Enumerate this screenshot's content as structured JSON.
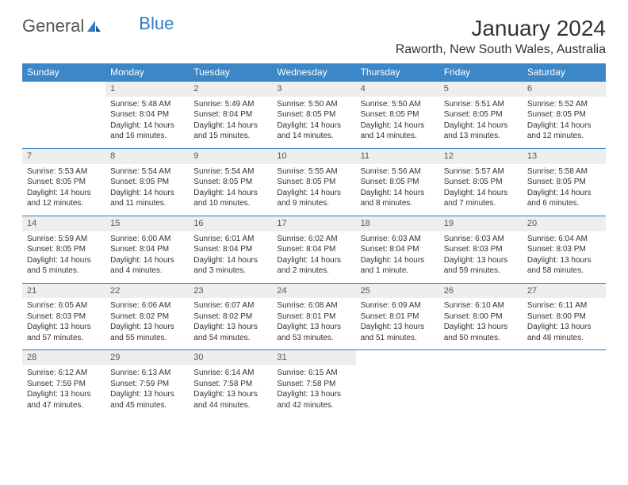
{
  "logo": {
    "part1": "General",
    "part2": "Blue"
  },
  "title": "January 2024",
  "location": "Raworth, New South Wales, Australia",
  "colors": {
    "header_bg": "#3b87c8",
    "header_text": "#ffffff",
    "rule": "#2f7cc4",
    "daynum_bg": "#eeeeee",
    "logo_blue": "#2f7cc4",
    "body_text": "#333333"
  },
  "dow": [
    "Sunday",
    "Monday",
    "Tuesday",
    "Wednesday",
    "Thursday",
    "Friday",
    "Saturday"
  ],
  "weeks": [
    [
      {
        "n": "",
        "sr": "",
        "ss": "",
        "dl": ""
      },
      {
        "n": "1",
        "sr": "Sunrise: 5:48 AM",
        "ss": "Sunset: 8:04 PM",
        "dl": "Daylight: 14 hours and 16 minutes."
      },
      {
        "n": "2",
        "sr": "Sunrise: 5:49 AM",
        "ss": "Sunset: 8:04 PM",
        "dl": "Daylight: 14 hours and 15 minutes."
      },
      {
        "n": "3",
        "sr": "Sunrise: 5:50 AM",
        "ss": "Sunset: 8:05 PM",
        "dl": "Daylight: 14 hours and 14 minutes."
      },
      {
        "n": "4",
        "sr": "Sunrise: 5:50 AM",
        "ss": "Sunset: 8:05 PM",
        "dl": "Daylight: 14 hours and 14 minutes."
      },
      {
        "n": "5",
        "sr": "Sunrise: 5:51 AM",
        "ss": "Sunset: 8:05 PM",
        "dl": "Daylight: 14 hours and 13 minutes."
      },
      {
        "n": "6",
        "sr": "Sunrise: 5:52 AM",
        "ss": "Sunset: 8:05 PM",
        "dl": "Daylight: 14 hours and 12 minutes."
      }
    ],
    [
      {
        "n": "7",
        "sr": "Sunrise: 5:53 AM",
        "ss": "Sunset: 8:05 PM",
        "dl": "Daylight: 14 hours and 12 minutes."
      },
      {
        "n": "8",
        "sr": "Sunrise: 5:54 AM",
        "ss": "Sunset: 8:05 PM",
        "dl": "Daylight: 14 hours and 11 minutes."
      },
      {
        "n": "9",
        "sr": "Sunrise: 5:54 AM",
        "ss": "Sunset: 8:05 PM",
        "dl": "Daylight: 14 hours and 10 minutes."
      },
      {
        "n": "10",
        "sr": "Sunrise: 5:55 AM",
        "ss": "Sunset: 8:05 PM",
        "dl": "Daylight: 14 hours and 9 minutes."
      },
      {
        "n": "11",
        "sr": "Sunrise: 5:56 AM",
        "ss": "Sunset: 8:05 PM",
        "dl": "Daylight: 14 hours and 8 minutes."
      },
      {
        "n": "12",
        "sr": "Sunrise: 5:57 AM",
        "ss": "Sunset: 8:05 PM",
        "dl": "Daylight: 14 hours and 7 minutes."
      },
      {
        "n": "13",
        "sr": "Sunrise: 5:58 AM",
        "ss": "Sunset: 8:05 PM",
        "dl": "Daylight: 14 hours and 6 minutes."
      }
    ],
    [
      {
        "n": "14",
        "sr": "Sunrise: 5:59 AM",
        "ss": "Sunset: 8:05 PM",
        "dl": "Daylight: 14 hours and 5 minutes."
      },
      {
        "n": "15",
        "sr": "Sunrise: 6:00 AM",
        "ss": "Sunset: 8:04 PM",
        "dl": "Daylight: 14 hours and 4 minutes."
      },
      {
        "n": "16",
        "sr": "Sunrise: 6:01 AM",
        "ss": "Sunset: 8:04 PM",
        "dl": "Daylight: 14 hours and 3 minutes."
      },
      {
        "n": "17",
        "sr": "Sunrise: 6:02 AM",
        "ss": "Sunset: 8:04 PM",
        "dl": "Daylight: 14 hours and 2 minutes."
      },
      {
        "n": "18",
        "sr": "Sunrise: 6:03 AM",
        "ss": "Sunset: 8:04 PM",
        "dl": "Daylight: 14 hours and 1 minute."
      },
      {
        "n": "19",
        "sr": "Sunrise: 6:03 AM",
        "ss": "Sunset: 8:03 PM",
        "dl": "Daylight: 13 hours and 59 minutes."
      },
      {
        "n": "20",
        "sr": "Sunrise: 6:04 AM",
        "ss": "Sunset: 8:03 PM",
        "dl": "Daylight: 13 hours and 58 minutes."
      }
    ],
    [
      {
        "n": "21",
        "sr": "Sunrise: 6:05 AM",
        "ss": "Sunset: 8:03 PM",
        "dl": "Daylight: 13 hours and 57 minutes."
      },
      {
        "n": "22",
        "sr": "Sunrise: 6:06 AM",
        "ss": "Sunset: 8:02 PM",
        "dl": "Daylight: 13 hours and 55 minutes."
      },
      {
        "n": "23",
        "sr": "Sunrise: 6:07 AM",
        "ss": "Sunset: 8:02 PM",
        "dl": "Daylight: 13 hours and 54 minutes."
      },
      {
        "n": "24",
        "sr": "Sunrise: 6:08 AM",
        "ss": "Sunset: 8:01 PM",
        "dl": "Daylight: 13 hours and 53 minutes."
      },
      {
        "n": "25",
        "sr": "Sunrise: 6:09 AM",
        "ss": "Sunset: 8:01 PM",
        "dl": "Daylight: 13 hours and 51 minutes."
      },
      {
        "n": "26",
        "sr": "Sunrise: 6:10 AM",
        "ss": "Sunset: 8:00 PM",
        "dl": "Daylight: 13 hours and 50 minutes."
      },
      {
        "n": "27",
        "sr": "Sunrise: 6:11 AM",
        "ss": "Sunset: 8:00 PM",
        "dl": "Daylight: 13 hours and 48 minutes."
      }
    ],
    [
      {
        "n": "28",
        "sr": "Sunrise: 6:12 AM",
        "ss": "Sunset: 7:59 PM",
        "dl": "Daylight: 13 hours and 47 minutes."
      },
      {
        "n": "29",
        "sr": "Sunrise: 6:13 AM",
        "ss": "Sunset: 7:59 PM",
        "dl": "Daylight: 13 hours and 45 minutes."
      },
      {
        "n": "30",
        "sr": "Sunrise: 6:14 AM",
        "ss": "Sunset: 7:58 PM",
        "dl": "Daylight: 13 hours and 44 minutes."
      },
      {
        "n": "31",
        "sr": "Sunrise: 6:15 AM",
        "ss": "Sunset: 7:58 PM",
        "dl": "Daylight: 13 hours and 42 minutes."
      },
      {
        "n": "",
        "sr": "",
        "ss": "",
        "dl": ""
      },
      {
        "n": "",
        "sr": "",
        "ss": "",
        "dl": ""
      },
      {
        "n": "",
        "sr": "",
        "ss": "",
        "dl": ""
      }
    ]
  ]
}
